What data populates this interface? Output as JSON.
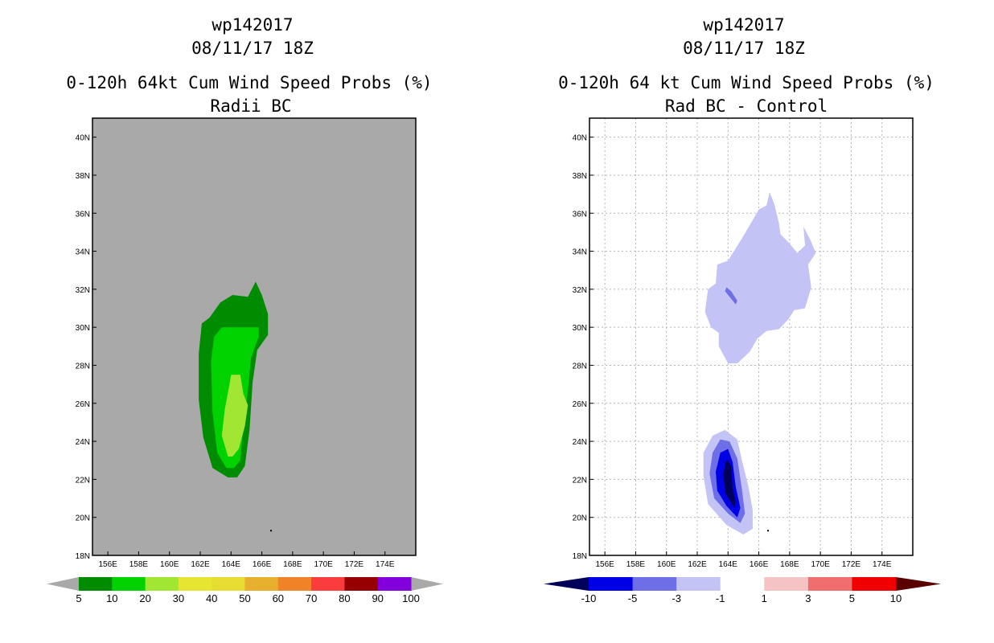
{
  "chart_data": [
    {
      "type": "heatmap",
      "storm_id": "wp142017",
      "datetime": "08/11/17 18Z",
      "title": "0-120h 64kt Cum Wind Speed Probs (%)",
      "subtitle": "Radii BC",
      "x_ticks": [
        "156E",
        "158E",
        "160E",
        "162E",
        "164E",
        "166E",
        "168E",
        "170E",
        "172E",
        "174E"
      ],
      "y_ticks": [
        "40N",
        "38N",
        "36N",
        "34N",
        "32N",
        "30N",
        "28N",
        "26N",
        "24N",
        "22N",
        "20N",
        "18N"
      ],
      "xlim": [
        155,
        176
      ],
      "ylim": [
        18,
        41
      ],
      "background_color": "#a9a9a9",
      "colorbar": {
        "labels": [
          "5",
          "10",
          "20",
          "30",
          "40",
          "50",
          "60",
          "70",
          "80",
          "90",
          "100"
        ],
        "colors": [
          "#008c00",
          "#00d200",
          "#a0e632",
          "#e6e632",
          "#e6dc32",
          "#e6af2d",
          "#f08228",
          "#fa3c3c",
          "#960000",
          "#8200dc"
        ],
        "end_colors": [
          "#a9a9a9",
          "#a9a9a9"
        ]
      },
      "contours": [
        {
          "level": "5-10",
          "color": "#008c00",
          "points": [
            [
              163.8,
              22.1
            ],
            [
              162.8,
              22.6
            ],
            [
              162.2,
              24.2
            ],
            [
              161.9,
              26.2
            ],
            [
              161.9,
              28.6
            ],
            [
              162.1,
              30.2
            ],
            [
              162.6,
              30.5
            ],
            [
              163.3,
              31.3
            ],
            [
              164.1,
              31.7
            ],
            [
              165.1,
              31.6
            ],
            [
              165.6,
              32.4
            ],
            [
              166.0,
              31.7
            ],
            [
              166.4,
              30.7
            ],
            [
              166.4,
              29.6
            ],
            [
              165.7,
              28.8
            ],
            [
              165.4,
              27.1
            ],
            [
              165.2,
              24.6
            ],
            [
              164.9,
              22.7
            ],
            [
              164.4,
              22.1
            ]
          ]
        },
        {
          "level": "10-20",
          "color": "#00d200",
          "points": [
            [
              163.7,
              22.6
            ],
            [
              163.1,
              23.4
            ],
            [
              162.8,
              25.5
            ],
            [
              162.7,
              28.2
            ],
            [
              162.9,
              29.5
            ],
            [
              163.4,
              30.0
            ],
            [
              164.6,
              30.0
            ],
            [
              165.8,
              30.0
            ],
            [
              165.8,
              29.5
            ],
            [
              165.3,
              28.4
            ],
            [
              165.1,
              26.7
            ],
            [
              164.8,
              24.8
            ],
            [
              164.6,
              23.0
            ],
            [
              164.2,
              22.6
            ]
          ]
        },
        {
          "level": "20-30",
          "color": "#a0e632",
          "points": [
            [
              163.8,
              23.2
            ],
            [
              163.4,
              24.3
            ],
            [
              163.6,
              25.7
            ],
            [
              163.9,
              27.0
            ],
            [
              164.0,
              27.5
            ],
            [
              164.6,
              27.5
            ],
            [
              164.8,
              26.5
            ],
            [
              165.1,
              25.9
            ],
            [
              164.9,
              24.8
            ],
            [
              164.5,
              23.6
            ],
            [
              164.1,
              23.2
            ]
          ]
        }
      ],
      "markers": [
        {
          "lon": 166.6,
          "lat": 19.3
        }
      ]
    },
    {
      "type": "heatmap",
      "storm_id": "wp142017",
      "datetime": "08/11/17 18Z",
      "title": "0-120h 64 kt Cum Wind Speed Probs (%)",
      "subtitle": "Rad BC - Control",
      "x_ticks": [
        "156E",
        "158E",
        "160E",
        "162E",
        "164E",
        "166E",
        "168E",
        "170E",
        "172E",
        "174E"
      ],
      "y_ticks": [
        "40N",
        "38N",
        "36N",
        "34N",
        "32N",
        "30N",
        "28N",
        "26N",
        "24N",
        "22N",
        "20N",
        "18N"
      ],
      "xlim": [
        155,
        176
      ],
      "ylim": [
        18,
        41
      ],
      "background_color": "#ffffff",
      "grid": true,
      "colorbar": {
        "labels": [
          "-10",
          "-5",
          "-3",
          "-1",
          "1",
          "3",
          "5",
          "10"
        ],
        "colors": [
          "#0000e6",
          "#6e6ee6",
          "#c3c3f5",
          "#ffffff",
          "#f5c3c3",
          "#f06e6e",
          "#f00000"
        ],
        "end_colors": [
          "#00005a",
          "#5a0000"
        ]
      },
      "contours": [
        {
          "level": "-3 to -1",
          "color": "#c3c3f5",
          "points": [
            [
              164.0,
              28.1
            ],
            [
              163.4,
              29.0
            ],
            [
              163.4,
              29.7
            ],
            [
              162.9,
              30.0
            ],
            [
              162.5,
              30.8
            ],
            [
              162.7,
              32.0
            ],
            [
              163.2,
              32.3
            ],
            [
              163.3,
              33.3
            ],
            [
              164.0,
              33.5
            ],
            [
              165.0,
              34.8
            ],
            [
              165.5,
              35.5
            ],
            [
              166.0,
              36.2
            ],
            [
              166.5,
              36.4
            ],
            [
              166.7,
              37.1
            ],
            [
              167.0,
              36.5
            ],
            [
              167.3,
              35.5
            ],
            [
              167.4,
              34.9
            ],
            [
              168.0,
              34.4
            ],
            [
              168.5,
              33.9
            ],
            [
              169.0,
              34.3
            ],
            [
              168.9,
              35.3
            ],
            [
              169.4,
              34.5
            ],
            [
              169.7,
              33.9
            ],
            [
              169.2,
              33.3
            ],
            [
              169.4,
              32.1
            ],
            [
              169.0,
              31.0
            ],
            [
              168.3,
              30.9
            ],
            [
              167.9,
              30.4
            ],
            [
              167.3,
              29.9
            ],
            [
              166.5,
              29.8
            ],
            [
              165.9,
              29.4
            ],
            [
              165.4,
              28.7
            ],
            [
              164.6,
              28.1
            ]
          ]
        },
        {
          "level": "-3 to -1",
          "color": "#c3c3f5",
          "points": [
            [
              165.0,
              19.1
            ],
            [
              163.9,
              19.6
            ],
            [
              162.7,
              20.7
            ],
            [
              162.4,
              22.2
            ],
            [
              162.4,
              23.4
            ],
            [
              163.0,
              24.3
            ],
            [
              163.8,
              24.6
            ],
            [
              164.6,
              24.1
            ],
            [
              164.9,
              23.0
            ],
            [
              165.3,
              21.7
            ],
            [
              165.6,
              20.4
            ],
            [
              165.6,
              19.4
            ]
          ]
        },
        {
          "level": "-5 to -3",
          "color": "#6e6ee6",
          "points": [
            [
              164.8,
              19.7
            ],
            [
              164.0,
              20.2
            ],
            [
              163.1,
              21.0
            ],
            [
              162.8,
              22.3
            ],
            [
              163.0,
              23.4
            ],
            [
              163.5,
              24.1
            ],
            [
              164.1,
              24.0
            ],
            [
              164.6,
              23.1
            ],
            [
              164.9,
              21.5
            ],
            [
              165.1,
              20.2
            ]
          ]
        },
        {
          "level": "-10 to -5",
          "color": "#0000e6",
          "points": [
            [
              164.6,
              20.0
            ],
            [
              163.9,
              20.6
            ],
            [
              163.3,
              21.4
            ],
            [
              163.2,
              22.4
            ],
            [
              163.5,
              23.4
            ],
            [
              164.0,
              23.6
            ],
            [
              164.3,
              22.9
            ],
            [
              164.5,
              21.6
            ],
            [
              164.8,
              20.5
            ]
          ]
        },
        {
          "level": "< -10",
          "color": "#00005a",
          "points": [
            [
              164.4,
              20.5
            ],
            [
              163.8,
              21.3
            ],
            [
              163.7,
              22.3
            ],
            [
              163.9,
              23.1
            ],
            [
              164.2,
              22.7
            ],
            [
              164.3,
              21.5
            ],
            [
              164.5,
              20.8
            ]
          ]
        },
        {
          "level": "-5 to -3",
          "color": "#6e6ee6",
          "points": [
            [
              163.9,
              32.1
            ],
            [
              164.2,
              31.9
            ],
            [
              164.6,
              31.4
            ],
            [
              164.5,
              31.2
            ],
            [
              164.1,
              31.6
            ],
            [
              163.8,
              31.9
            ]
          ]
        }
      ],
      "markers": [
        {
          "lon": 166.6,
          "lat": 19.3
        }
      ]
    }
  ]
}
